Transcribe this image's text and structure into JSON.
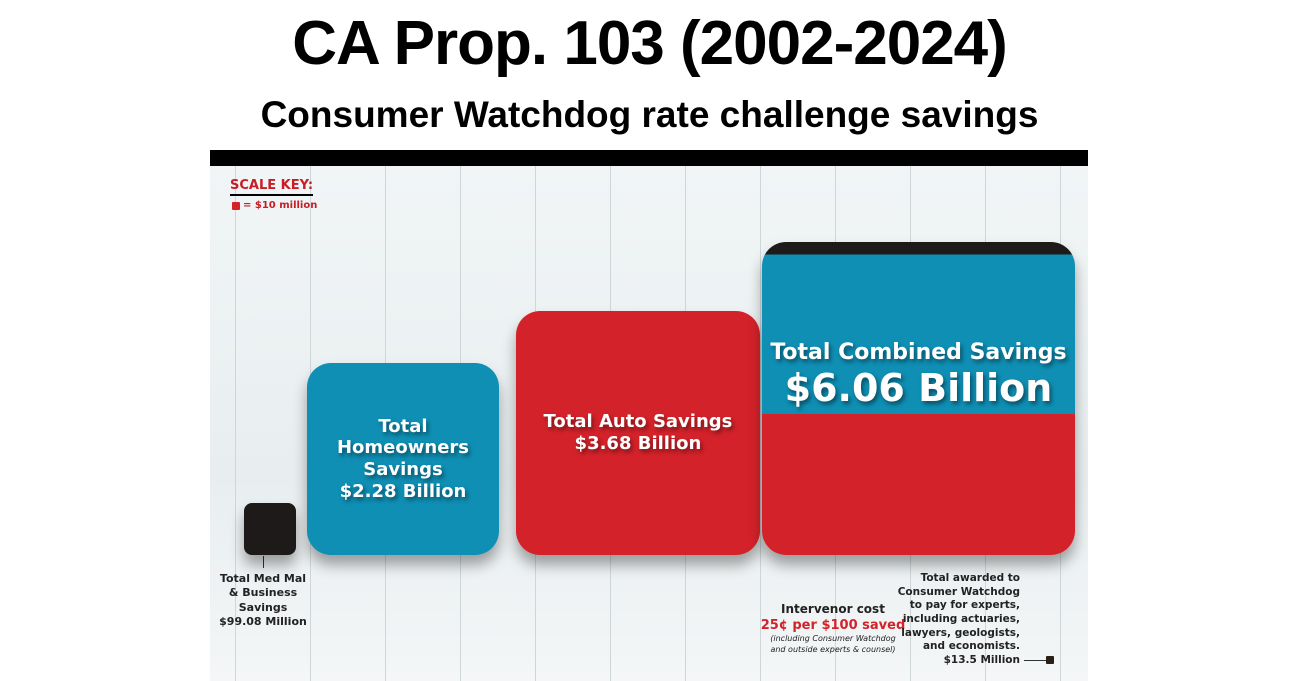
{
  "header": {
    "title": "CA Prop. 103 (2002-2024)",
    "subtitle": "Consumer Watchdog rate challenge savings"
  },
  "scale_key": {
    "title": "SCALE KEY:",
    "unit": "= $10 million"
  },
  "colors": {
    "red": "#d4222a",
    "blue": "#0f8fb4",
    "black": "#1e1a1a",
    "key_red": "#c81d25"
  },
  "chart_data": {
    "type": "proportional-area",
    "unit": "$ millions",
    "items": [
      {
        "key": "medmal",
        "label_lines": [
          "Total Med Mal",
          "& Business Savings",
          "$99.08 Million"
        ],
        "value": 99.08,
        "color": "#1e1a1a"
      },
      {
        "key": "home",
        "label_lines": [
          "Total",
          "Homeowners",
          "Savings",
          "$2.28 Billion"
        ],
        "value": 2280,
        "color": "#0f8fb4"
      },
      {
        "key": "auto",
        "label_lines": [
          "Total Auto Savings",
          "$3.68 Billion"
        ],
        "value": 3680,
        "color": "#d4222a"
      },
      {
        "key": "combined",
        "label_lines": [
          "Total Combined Savings",
          "$6.06 Billion"
        ],
        "value": 6060,
        "color": "#d4222a"
      }
    ]
  },
  "notes": {
    "intervenor": [
      "Intervenor cost",
      "25¢ per $100 saved",
      "(including Consumer Watchdog",
      "and outside experts & counsel)"
    ],
    "awarded": [
      "Total awarded to",
      "Consumer Watchdog",
      "to pay for experts,",
      "including actuaries,",
      "lawyers, geologists,",
      "and economists.",
      "$13.5 Million"
    ],
    "awarded_value_millions": 13.5
  }
}
